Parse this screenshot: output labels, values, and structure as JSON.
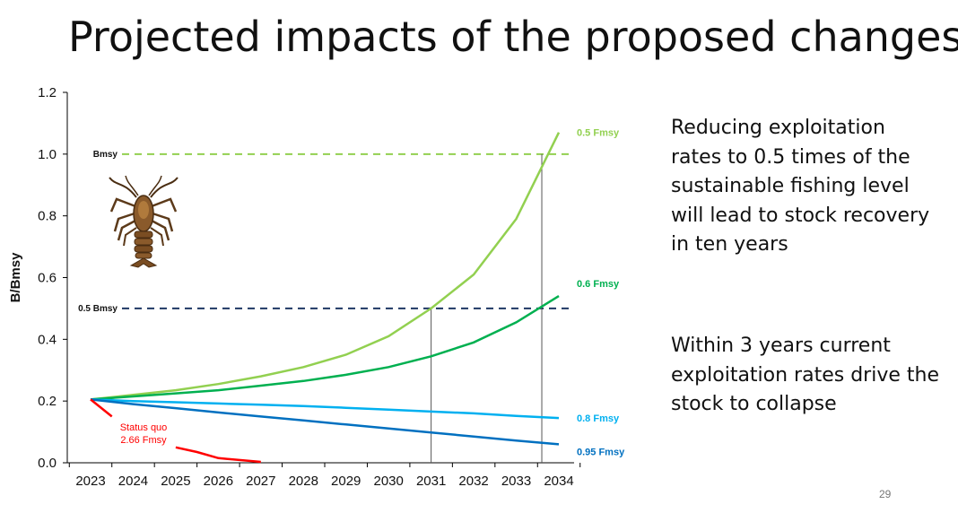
{
  "slide": {
    "title": "Projected impacts of the proposed changes",
    "notes": [
      "Reducing exploitation rates to 0.5 times of the sustainable fishing level will lead to stock recovery in ten years",
      "Within 3 years current exploitation rates drive the stock to collapse"
    ],
    "page_number": "29",
    "illustration": "lobster-icon"
  },
  "chart_data": {
    "type": "line",
    "title": "",
    "xlabel": "",
    "ylabel": "B/Bmsy",
    "x": [
      2023,
      2024,
      2025,
      2026,
      2027,
      2028,
      2029,
      2030,
      2031,
      2032,
      2033,
      2034
    ],
    "xlim": [
      2023,
      2034
    ],
    "ylim": [
      0,
      1.2
    ],
    "yticks": [
      0.0,
      0.2,
      0.4,
      0.6,
      0.8,
      1.0,
      1.2
    ],
    "ytick_labels": [
      "0.0",
      "0.2",
      "0.4",
      "0.6",
      "0.8",
      "1.0",
      "1.2"
    ],
    "grid": false,
    "series": [
      {
        "name": "0.5 Fmsy",
        "color": "#92d050",
        "x": [
          2023,
          2024,
          2025,
          2026,
          2027,
          2028,
          2029,
          2030,
          2031,
          2032,
          2033,
          2034
        ],
        "values": [
          0.205,
          0.22,
          0.235,
          0.255,
          0.28,
          0.31,
          0.35,
          0.41,
          0.5,
          0.61,
          0.79,
          1.07
        ]
      },
      {
        "name": "0.6 Fmsy",
        "color": "#00b050",
        "x": [
          2023,
          2024,
          2025,
          2026,
          2027,
          2028,
          2029,
          2030,
          2031,
          2032,
          2033,
          2034
        ],
        "values": [
          0.205,
          0.215,
          0.225,
          0.235,
          0.25,
          0.265,
          0.285,
          0.31,
          0.345,
          0.39,
          0.455,
          0.54
        ]
      },
      {
        "name": "0.8 Fmsy",
        "color": "#00b0f0",
        "x": [
          2023,
          2024,
          2025,
          2026,
          2027,
          2028,
          2029,
          2030,
          2031,
          2032,
          2033,
          2034
        ],
        "values": [
          0.205,
          0.2,
          0.196,
          0.192,
          0.188,
          0.184,
          0.178,
          0.172,
          0.166,
          0.16,
          0.152,
          0.145
        ]
      },
      {
        "name": "0.95 Fmsy",
        "color": "#0070c0",
        "x": [
          2023,
          2024,
          2025,
          2026,
          2027,
          2028,
          2029,
          2030,
          2031,
          2032,
          2033,
          2034
        ],
        "values": [
          0.205,
          0.19,
          0.177,
          0.163,
          0.15,
          0.137,
          0.124,
          0.111,
          0.098,
          0.085,
          0.072,
          0.06
        ]
      },
      {
        "name": "Status quo\n2.66 Fmsy",
        "color": "#ff0000",
        "x": [
          2023,
          2023.5,
          2025,
          2025.5,
          2026,
          2027
        ],
        "values": [
          0.205,
          0.15,
          0.05,
          0.035,
          0.015,
          0.003
        ]
      }
    ],
    "reference_lines": [
      {
        "name": "Bmsy",
        "y": 1.0,
        "color": "#92d050"
      },
      {
        "name": "0.5 Bmsy",
        "y": 0.5,
        "color": "#1f3864"
      }
    ],
    "vertical_markers": [
      2031,
      2033.6
    ]
  }
}
